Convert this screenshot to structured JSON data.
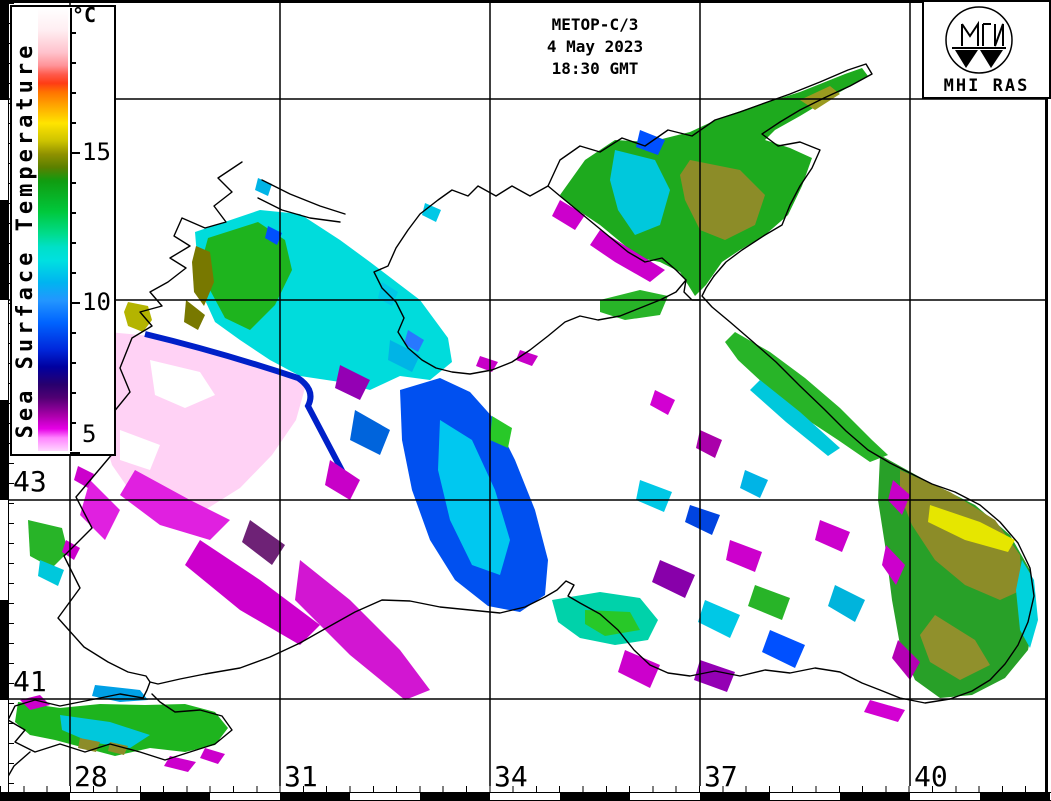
{
  "info_box": {
    "satellite": "METOP-C/3",
    "date": "4 May 2023",
    "time": "18:30 GMT"
  },
  "logo": {
    "label": "MHI RAS"
  },
  "colorbar": {
    "title": "Sea Surface Temperature",
    "unit": "°C",
    "major_ticks": [
      {
        "label": "15"
      },
      {
        "label": "10"
      },
      {
        "label": "5"
      }
    ],
    "scale_range": {
      "min": 5,
      "max": 20
    },
    "gradient": [
      [
        0,
        "#ffffff"
      ],
      [
        5,
        "#ffeef2"
      ],
      [
        10,
        "#ffc3cd"
      ],
      [
        13,
        "#ff9398"
      ],
      [
        15,
        "#ff5a4b"
      ],
      [
        17,
        "#ff3c14"
      ],
      [
        19,
        "#ff7300"
      ],
      [
        22,
        "#ffa500"
      ],
      [
        26,
        "#ffe400"
      ],
      [
        30,
        "#cdc300"
      ],
      [
        33,
        "#8f9100"
      ],
      [
        36,
        "#5a8000"
      ],
      [
        39,
        "#109c10"
      ],
      [
        46,
        "#00c83c"
      ],
      [
        51,
        "#00dc8c"
      ],
      [
        54,
        "#00e0c8"
      ],
      [
        57,
        "#00e0e0"
      ],
      [
        62,
        "#00b4f0"
      ],
      [
        66,
        "#2396ff"
      ],
      [
        71,
        "#0064ff"
      ],
      [
        77,
        "#0028dc"
      ],
      [
        81,
        "#0000a0"
      ],
      [
        85,
        "#28006e"
      ],
      [
        88,
        "#500073"
      ],
      [
        92,
        "#aa00aa"
      ],
      [
        95,
        "#e600e6"
      ],
      [
        97,
        "#ff82ff"
      ],
      [
        100,
        "#ffd7ff"
      ]
    ]
  },
  "map": {
    "lat_labels": [
      {
        "text": "43"
      },
      {
        "text": "41"
      }
    ],
    "lon_labels": [
      {
        "text": "28"
      },
      {
        "text": "31"
      },
      {
        "text": "34"
      },
      {
        "text": "37"
      },
      {
        "text": "40"
      }
    ],
    "grid": {
      "meridians_deg": [
        28,
        31,
        34,
        37,
        40
      ],
      "parallels_deg": [
        47,
        45,
        43,
        41
      ]
    }
  }
}
